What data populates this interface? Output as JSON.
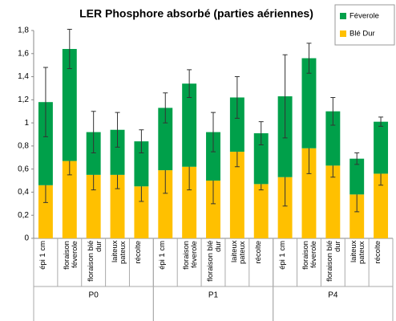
{
  "chart_data": {
    "type": "stacked-bar",
    "title": "LER Phosphore absorbé (parties aériennes)",
    "categories": [
      "épi 1 cm",
      "floraison féverole",
      "floraison blé dur",
      "laiteux pateux",
      "récolte",
      "épi 1 cm",
      "floraison féverole",
      "floraison blé dur",
      "laiteux pateux",
      "récolte",
      "épi 1 cm",
      "floraison féverole",
      "floraison blé dur",
      "laiteux pateux",
      "récolte"
    ],
    "groups": [
      "P0",
      "P1",
      "P4"
    ],
    "series": [
      {
        "name": "Blé Dur",
        "color": "#ffc000",
        "values": [
          0.46,
          0.67,
          0.55,
          0.55,
          0.45,
          0.59,
          0.62,
          0.5,
          0.75,
          0.47,
          0.53,
          0.78,
          0.63,
          0.38,
          0.56
        ],
        "errors": [
          0.15,
          0.12,
          0.13,
          0.12,
          0.13,
          0.2,
          0.2,
          0.2,
          0.13,
          0.05,
          0.25,
          0.22,
          0.1,
          0.15,
          0.1
        ]
      },
      {
        "name": "Féverole",
        "color": "#00a04a",
        "values": [
          0.72,
          0.97,
          0.37,
          0.39,
          0.39,
          0.54,
          0.72,
          0.42,
          0.47,
          0.44,
          0.7,
          0.78,
          0.47,
          0.31,
          0.45
        ],
        "errors": [
          0.3,
          0.17,
          0.18,
          0.15,
          0.1,
          0.13,
          0.12,
          0.17,
          0.18,
          0.1,
          0.36,
          0.13,
          0.12,
          0.05,
          0.04
        ]
      }
    ],
    "ylim": [
      0,
      1.8
    ],
    "yticks": [
      0,
      {
        "value": 0.2,
        "label": "0,2"
      },
      {
        "value": 0.4,
        "label": "0,4"
      },
      {
        "value": 0.6,
        "label": "0,6"
      },
      {
        "value": 0.8,
        "label": "0,8"
      },
      1,
      {
        "value": 1.2,
        "label": "1,2"
      },
      {
        "value": 1.4,
        "label": "1,4"
      },
      {
        "value": 1.6,
        "label": "1,6"
      },
      {
        "value": 1.8,
        "label": "1,8"
      }
    ],
    "grid": false
  }
}
